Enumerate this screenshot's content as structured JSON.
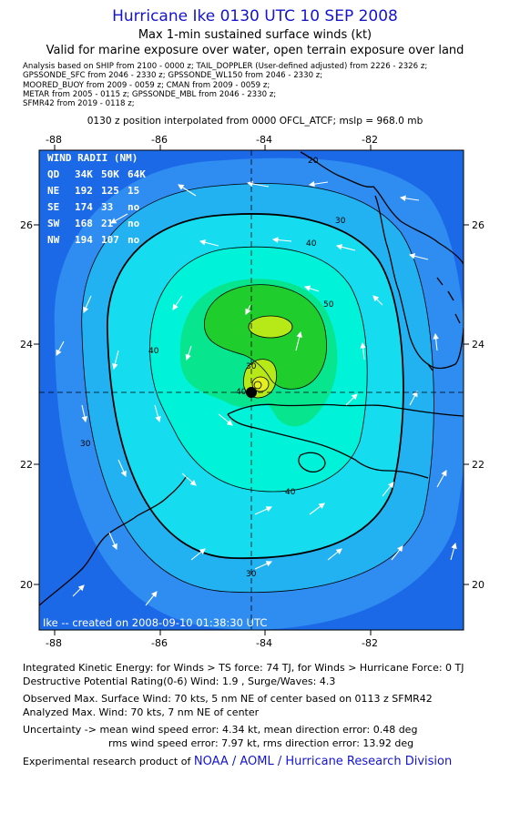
{
  "header": {
    "title": "Hurricane Ike 0130 UTC 10 SEP 2008",
    "subtitle": "Max 1-min sustained surface winds (kt)",
    "valid_note": "Valid for marine exposure over water, open terrain exposure over land"
  },
  "analysis_lines": [
    "Analysis based on   SHIP from 2100 - 0000 z;  TAIL_DOPPLER (User-defined adjusted) from 2226 - 2326 z;",
    "GPSSONDE_SFC from 2046 - 2330 z;  GPSSONDE_WL150 from 2046 - 2330 z;",
    "MOORED_BUOY from 2009 - 0059 z;  CMAN from 2009 - 0059 z;",
    "METAR from 2005 - 0115 z;  GPSSONDE_MBL from 2046 - 2330 z;",
    "SFMR42 from 2019 - 0118 z;"
  ],
  "position_line": "0130 z position interpolated from 0000 OFCL_ATCF; mslp = 968.0 mb",
  "map": {
    "x_ticks": [
      "-88",
      "-86",
      "-84",
      "-82"
    ],
    "y_ticks": [
      "26",
      "24",
      "22",
      "20"
    ],
    "contour_labels": [
      "20",
      "30",
      "30",
      "40",
      "40",
      "40",
      "50",
      "30",
      "30",
      "40"
    ],
    "wind_radii": {
      "title": "WIND RADII (NM)",
      "header": [
        "QD",
        "34K",
        "50K",
        "64K"
      ],
      "rows": [
        [
          "NE",
          "192",
          "125",
          "15"
        ],
        [
          "SE",
          "174",
          "33",
          "no"
        ],
        [
          "SW",
          "168",
          "21",
          "no"
        ],
        [
          "NW",
          "194",
          "107",
          "no"
        ]
      ]
    },
    "credit": "Ike -- created on 2008-09-10 01:38:30 UTC",
    "colors": {
      "ocean_deep": "#1c69e8",
      "band_20": "#2f8cf0",
      "band_30": "#22b2f2",
      "band_34": "#16dcef",
      "band_40": "#00f2d8",
      "band_45": "#08e58f",
      "band_50": "#1fcd2c",
      "band_60": "#b7e818",
      "band_64": "#e6ee22"
    }
  },
  "footer": {
    "ike": "Integrated Kinetic Energy:  for Winds > TS force: 74 TJ,  for Winds > Hurricane Force: 0 TJ",
    "dpr": "Destructive Potential Rating(0-6)   Wind: 1.9 , Surge/Waves: 4.3",
    "observed": "Observed Max. Surface Wind: 70 kts, 5 nm NE of center based on 0113 z SFMR42",
    "analyzed": "Analyzed Max. Wind: 70 kts, 7 nm NE of center",
    "uncertainty1": "Uncertainty -> mean wind speed error: 4.34 kt,   mean direction error: 0.48 deg",
    "uncertainty2": "rms wind speed error: 7.97 kt,   rms direction error: 13.92 deg",
    "credit_prefix": "Experimental research product of ",
    "credit_org": "NOAA / AOML / Hurricane Research Division"
  }
}
